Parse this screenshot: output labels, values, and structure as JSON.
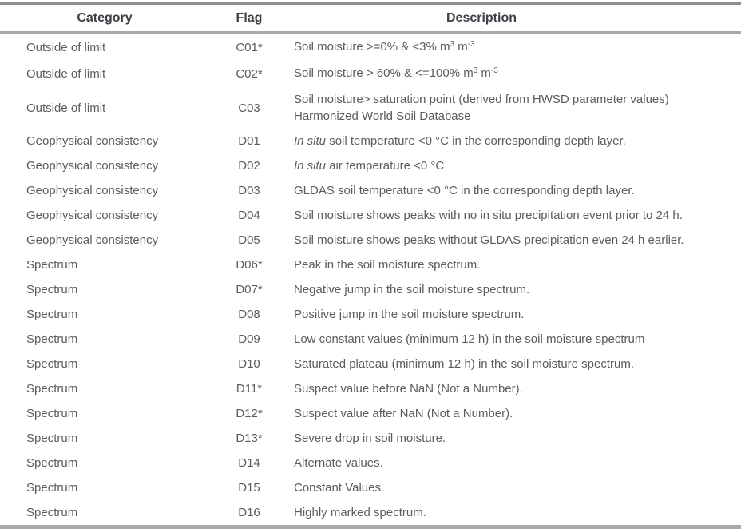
{
  "table": {
    "headers": [
      "Category",
      "Flag",
      "Description"
    ],
    "rows": [
      {
        "category": "Outside of limit",
        "flag": "C01*",
        "description": [
          {
            "t": "Soil moisture >=0% & <3% m"
          },
          {
            "t": "3",
            "s": "sup"
          },
          {
            "t": " m"
          },
          {
            "t": "-3",
            "s": "sup"
          }
        ]
      },
      {
        "category": "Outside of limit",
        "flag": "C02*",
        "description": [
          {
            "t": "Soil moisture > 60% & <=100% m"
          },
          {
            "t": "3",
            "s": "sup"
          },
          {
            "t": " m"
          },
          {
            "t": "-3",
            "s": "sup"
          }
        ]
      },
      {
        "category": "Outside of limit",
        "flag": "C03",
        "description": [
          {
            "t": "Soil moisture> saturation point (derived from HWSD parameter values)"
          },
          {
            "br": true
          },
          {
            "t": "Harmonized World Soil Database"
          }
        ]
      },
      {
        "category": "Geophysical consistency",
        "flag": "D01",
        "description": [
          {
            "t": "In situ",
            "s": "i"
          },
          {
            "t": " soil temperature <0 °C in the corresponding depth layer."
          }
        ]
      },
      {
        "category": "Geophysical consistency",
        "flag": "D02",
        "description": [
          {
            "t": "In situ",
            "s": "i"
          },
          {
            "t": " air temperature <0 °C"
          }
        ]
      },
      {
        "category": "Geophysical consistency",
        "flag": "D03",
        "description": [
          {
            "t": "GLDAS soil temperature <0 °C in the corresponding depth layer."
          }
        ]
      },
      {
        "category": "Geophysical consistency",
        "flag": "D04",
        "description": [
          {
            "t": "Soil moisture shows peaks with no in situ precipitation event prior to 24 h."
          }
        ]
      },
      {
        "category": "Geophysical consistency",
        "flag": "D05",
        "description": [
          {
            "t": "Soil moisture shows peaks without GLDAS precipitation even 24 h earlier."
          }
        ]
      },
      {
        "category": "Spectrum",
        "flag": "D06*",
        "description": [
          {
            "t": "Peak in the soil moisture spectrum."
          }
        ]
      },
      {
        "category": "Spectrum",
        "flag": "D07*",
        "description": [
          {
            "t": "Negative jump in the soil moisture spectrum."
          }
        ]
      },
      {
        "category": "Spectrum",
        "flag": "D08",
        "description": [
          {
            "t": "Positive jump in the soil moisture spectrum."
          }
        ]
      },
      {
        "category": "Spectrum",
        "flag": "D09",
        "description": [
          {
            "t": "Low constant values (minimum 12 h) in the soil moisture spectrum"
          }
        ]
      },
      {
        "category": "Spectrum",
        "flag": "D10",
        "description": [
          {
            "t": "Saturated plateau (minimum 12 h) in the soil moisture spectrum."
          }
        ]
      },
      {
        "category": "Spectrum",
        "flag": "D11*",
        "description": [
          {
            "t": "Suspect value before NaN (Not a Number)."
          }
        ]
      },
      {
        "category": "Spectrum",
        "flag": "D12*",
        "description": [
          {
            "t": "Suspect value after NaN (Not a Number)."
          }
        ]
      },
      {
        "category": "Spectrum",
        "flag": "D13*",
        "description": [
          {
            "t": "Severe drop in soil moisture."
          }
        ]
      },
      {
        "category": "Spectrum",
        "flag": "D14",
        "description": [
          {
            "t": "Alternate values."
          }
        ]
      },
      {
        "category": "Spectrum",
        "flag": "D15",
        "description": [
          {
            "t": "Constant Values."
          }
        ]
      },
      {
        "category": "Spectrum",
        "flag": "D16",
        "description": [
          {
            "t": "Highly marked spectrum."
          }
        ]
      }
    ]
  }
}
